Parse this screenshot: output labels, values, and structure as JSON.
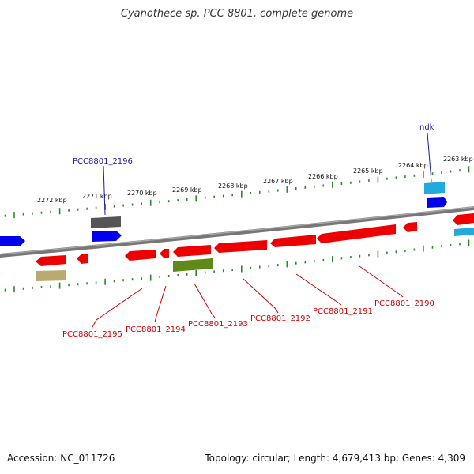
{
  "title": "Cyanothece sp. PCC 8801, complete genome",
  "footer": {
    "accession": "Accession: NC_011726",
    "topology": "Topology: circular; Length: 4,679,413 bp; Genes: 4,309"
  },
  "colors": {
    "forward_gene": "#0000ee",
    "reverse_gene": "#ee0000",
    "backbone": "#888888",
    "tick": "#2a8a2a",
    "gene_label_forward": "#1a1aa6",
    "gene_label_reverse": "#cc0000"
  },
  "scale": {
    "labels": [
      "2272 kbp",
      "2271 kbp",
      "2270 kbp",
      "2269 kbp",
      "2268 kbp",
      "2267 kbp",
      "2266 kbp",
      "2265 kbp",
      "2264 kbp",
      "2263 kbp"
    ]
  },
  "gene_labels": {
    "forward": [
      "PCC8801_2196",
      "ndk"
    ],
    "reverse": [
      "PCC8801_2195",
      "PCC8801_2194",
      "PCC8801_2193",
      "PCC8801_2192",
      "PCC8801_2191",
      "PCC8801_2190"
    ]
  }
}
